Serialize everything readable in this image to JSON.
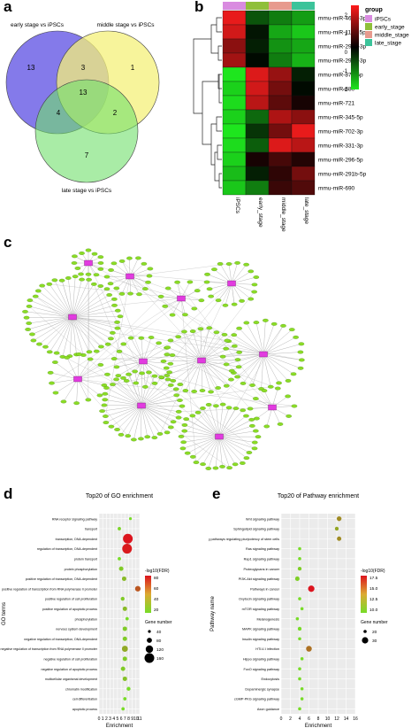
{
  "panel_labels": {
    "a": "a",
    "b": "b",
    "c": "c",
    "d": "d",
    "e": "e"
  },
  "venn": {
    "sets": [
      {
        "label": "early stage vs iPSCs",
        "color": "#6f63e6"
      },
      {
        "label": "middle stage vs iPSCs",
        "color": "#f4f07a"
      },
      {
        "label": "late stage vs iPSCs",
        "color": "#6fe06a"
      }
    ],
    "regions": {
      "early_only": "13",
      "middle_only": "1",
      "late_only": "7",
      "early_middle": "3",
      "early_late": "4",
      "middle_late": "2",
      "all": "13"
    }
  },
  "heatmap": {
    "legend_title": "group",
    "groups": [
      {
        "name": "iPSCs",
        "color": "#d98be0"
      },
      {
        "name": "early_stage",
        "color": "#8fbf3a"
      },
      {
        "name": "middle_stage",
        "color": "#e79a8e"
      },
      {
        "name": "late_stage",
        "color": "#3cc39a"
      }
    ],
    "columns": [
      "iPSCs",
      "early_stage",
      "middle_stage",
      "late_stage"
    ],
    "rows": [
      "mmu-miR-466b-3p",
      "mmu-miR-1198-5p",
      "mmu-miR-291a-3p",
      "mmu-miR-292a-3p",
      "mmu-miR-871-5p",
      "mmu-miR-680",
      "mmu-miR-721",
      "mmu-miR-345-5p",
      "mmu-miR-702-3p",
      "mmu-miR-331-3p",
      "mmu-miR-296-5p",
      "mmu-miR-291b-5p",
      "mmu-miR-690"
    ],
    "values": [
      [
        2.0,
        -0.8,
        -1.2,
        -1.5
      ],
      [
        1.8,
        -0.2,
        -1.6,
        -1.9
      ],
      [
        1.2,
        -0.3,
        -1.4,
        -1.6
      ],
      [
        1.4,
        -0.1,
        -1.2,
        -1.7
      ],
      [
        -2.2,
        1.9,
        1.3,
        -0.3
      ],
      [
        -2.0,
        1.8,
        1.0,
        -0.1
      ],
      [
        -2.1,
        1.6,
        0.8,
        0.2
      ],
      [
        -2.0,
        -1.0,
        1.5,
        1.2
      ],
      [
        -2.2,
        -0.5,
        1.0,
        2.0
      ],
      [
        -2.1,
        -0.9,
        1.9,
        1.6
      ],
      [
        -2.0,
        0.2,
        0.6,
        0.3
      ],
      [
        -1.8,
        -0.3,
        0.4,
        1.0
      ],
      [
        -1.9,
        -1.2,
        0.5,
        0.7
      ]
    ],
    "scale_ticks": [
      "2",
      "1",
      "0",
      "-1",
      "-2"
    ]
  },
  "go_chart": {
    "title": "Top20 of GO enrichment",
    "xlabel": "Enrichment",
    "ylabel": "GO terms",
    "color_legend_title": "-log10(FDR)",
    "color_ticks": [
      "80",
      "60",
      "40",
      "20"
    ],
    "size_legend_title": "Gene number",
    "size_ticks": [
      "40",
      "80",
      "120",
      "160"
    ],
    "x_ticks": [
      "0",
      "1",
      "2",
      "3",
      "4",
      "5",
      "6",
      "7",
      "8",
      "9",
      "10",
      "11"
    ]
  },
  "pathway_chart": {
    "title": "Top20 of Pathway enrichment",
    "xlabel": "Enrichment",
    "ylabel": "Pathway name",
    "color_legend_title": "-log10(FDR)",
    "color_ticks": [
      "17.5",
      "15.0",
      "12.5",
      "10.0"
    ],
    "size_legend_title": "Gene number",
    "size_ticks": [
      "20",
      "30"
    ],
    "x_ticks": [
      "0",
      "2",
      "4",
      "6",
      "8",
      "10",
      "12",
      "14",
      "16"
    ]
  },
  "chart_data": [
    {
      "type": "scatter",
      "title": "Top20 of GO enrichment",
      "xlabel": "Enrichment",
      "ylabel": "GO terms",
      "xlim": [
        0,
        11
      ],
      "grid": true,
      "categories": [
        "RNA receptor signaling pathway",
        "transport",
        "transcription, DNA-dependent",
        "regulation of transcription, DNA-dependent",
        "protein transport",
        "protein phosphorylation",
        "positive regulation of transcription, DNA-dependent",
        "positive regulation of transcription from RNA polymerase II promoter",
        "positive regulation of cell proliferation",
        "positive regulation of apoptotic process",
        "phosphorylation",
        "nervous system development",
        "negative regulation of transcription, DNA-dependent",
        "negative regulation of transcription from RNA polymerase II promoter",
        "negative regulation of cell proliferation",
        "negative regulation of apoptotic process",
        "multicellular organismal development",
        "chromatin modification",
        "cell differentiation",
        "apoptotic process"
      ],
      "x": [
        8.5,
        5.5,
        7.8,
        7.6,
        5.5,
        6.0,
        6.8,
        10.5,
        6.4,
        7.0,
        7.6,
        7.0,
        7.0,
        7.0,
        7.0,
        6.5,
        7.0,
        8.0,
        7.0,
        6.5
      ],
      "gene_number": [
        30,
        40,
        160,
        160,
        40,
        60,
        60,
        80,
        50,
        60,
        40,
        60,
        60,
        90,
        60,
        60,
        60,
        50,
        40,
        40
      ],
      "fdr_log10": [
        20,
        22,
        80,
        78,
        20,
        25,
        30,
        60,
        25,
        30,
        20,
        25,
        25,
        35,
        25,
        25,
        28,
        20,
        20,
        20
      ]
    },
    {
      "type": "scatter",
      "title": "Top20 of Pathway enrichment",
      "xlabel": "Enrichment",
      "ylabel": "Pathway name",
      "xlim": [
        0,
        16
      ],
      "grid": true,
      "categories": [
        "Wnt signaling pathway",
        "Sphingolipid signaling pathway",
        "Signaling pathways regulating pluripotency of stem cells",
        "Ras signaling pathway",
        "Rap1 signaling pathway",
        "Proteoglycans in cancer",
        "PI3K-Akt signaling pathway",
        "Pathways in cancer",
        "Oxytocin signaling pathway",
        "mTOR signaling pathway",
        "Melanogenesis",
        "MAPK signaling pathway",
        "Insulin signaling pathway",
        "HTLV-I infection",
        "Hippo signaling pathway",
        "FoxO signaling pathway",
        "Endocytosis",
        "Dopaminergic synapse",
        "cGMP-PKG signaling pathway",
        "Axon guidance"
      ],
      "x": [
        12.5,
        12.0,
        12.5,
        4.0,
        4.0,
        4.0,
        3.5,
        6.5,
        4.0,
        4.5,
        3.5,
        4.0,
        4.0,
        6.0,
        4.5,
        4.0,
        4.0,
        4.5,
        4.5,
        4.0
      ],
      "gene_number": [
        25,
        22,
        24,
        20,
        20,
        22,
        24,
        30,
        20,
        20,
        20,
        22,
        20,
        28,
        20,
        20,
        20,
        20,
        20,
        20
      ],
      "fdr_log10": [
        13,
        12,
        13,
        10,
        10,
        10.5,
        10.5,
        17.5,
        10,
        10,
        10,
        10,
        10,
        14,
        10,
        10,
        10,
        10,
        10,
        10
      ]
    }
  ]
}
